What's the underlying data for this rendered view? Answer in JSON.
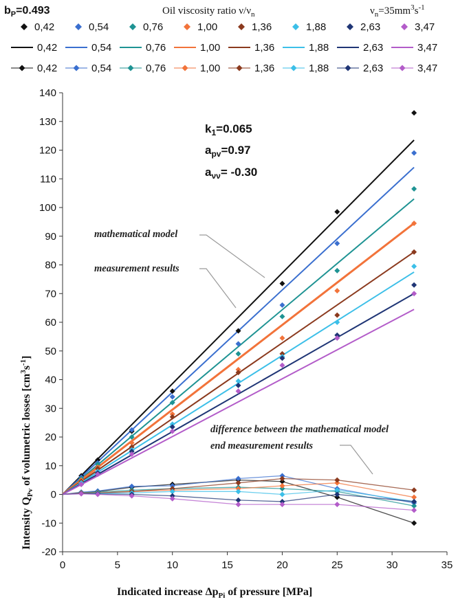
{
  "header": {
    "bp_label": "b",
    "bp_sub": "P",
    "bp_value": "=0.493",
    "viscosity_title": "Oil viscosity ratio ν/ν",
    "viscosity_title_sub": "n",
    "vn_label": "ν",
    "vn_sub": "n",
    "vn_value": "=35mm",
    "vn_sup1": "3",
    "vn_mid": "s",
    "vn_sup2": "-1"
  },
  "legend": {
    "labels": [
      "0,42",
      "0,54",
      "0,76",
      "1,00",
      "1,36",
      "1,88",
      "2,63",
      "3,47"
    ]
  },
  "annotations": {
    "k1": "k",
    "k1_sub": "1",
    "k1_value": "=0.065",
    "apv": "a",
    "apv_sub": "pv",
    "apv_value": "=0.97",
    "avv": "a",
    "avv_sub": "νν",
    "avv_value": "= -0.30",
    "math_model": "mathematical model",
    "measurement": "measurement results",
    "difference_line1": "difference between the mathematical model",
    "difference_line2": "end measurement results"
  },
  "chart_data": {
    "type": "scatter",
    "title": "",
    "xlabel": "Indicated increase Δp",
    "xlabel_sub": "Pi",
    "xlabel_rest": " of pressure    [MPa]",
    "ylabel": "Intensity Q",
    "ylabel_sub": "Pv",
    "ylabel_rest": " of volumetric losses   [cm",
    "ylabel_sup1": "3",
    "ylabel_mid": "s",
    "ylabel_sup2": "-1",
    "ylabel_end": "]",
    "xlim": [
      0,
      35
    ],
    "ylim": [
      -20,
      140
    ],
    "xticks": [
      0,
      5,
      10,
      15,
      20,
      25,
      30,
      35
    ],
    "yticks": [
      -20,
      -10,
      0,
      10,
      20,
      30,
      40,
      50,
      60,
      70,
      80,
      90,
      100,
      110,
      120,
      130,
      140
    ],
    "grid": false,
    "legend_position": "top",
    "series": [
      {
        "name": "0,42",
        "color": "#111111",
        "measured_x": [
          1.7,
          3.2,
          6.3,
          10.0,
          16.0,
          20.0,
          25.0,
          32.0
        ],
        "measured_y": [
          6.5,
          12.0,
          22.0,
          36.0,
          57.0,
          73.5,
          98.5,
          133.0
        ],
        "model_x": [
          0,
          32
        ],
        "model_y": [
          0,
          123.5
        ],
        "diff_x": [
          1.7,
          3.2,
          6.3,
          10.0,
          16.0,
          20.0,
          25.0,
          32.0
        ],
        "diff_y": [
          0.5,
          1.0,
          2.5,
          3.5,
          5.0,
          4.5,
          -1.0,
          -10.0
        ]
      },
      {
        "name": "0,54",
        "color": "#3a6fcf",
        "measured_x": [
          1.7,
          3.2,
          6.3,
          10.0,
          16.0,
          20.0,
          25.0,
          32.0
        ],
        "measured_y": [
          6.0,
          11.0,
          22.5,
          34.0,
          52.5,
          66.0,
          87.5,
          119.0
        ],
        "model_x": [
          0,
          32
        ],
        "model_y": [
          0,
          114.0
        ],
        "diff_x": [
          1.7,
          3.2,
          6.3,
          10.0,
          16.0,
          20.0,
          25.0,
          32.0
        ],
        "diff_y": [
          0.8,
          1.2,
          2.8,
          3.0,
          5.5,
          6.5,
          2.0,
          -3.0
        ]
      },
      {
        "name": "0,76",
        "color": "#1e9393",
        "measured_x": [
          1.7,
          3.2,
          6.3,
          10.0,
          16.0,
          20.0,
          25.0,
          32.0
        ],
        "measured_y": [
          5.5,
          10.5,
          20.0,
          32.0,
          49.0,
          62.0,
          78.0,
          106.5
        ],
        "model_x": [
          0,
          32
        ],
        "model_y": [
          0,
          103.0
        ],
        "diff_x": [
          1.7,
          3.2,
          6.3,
          10.0,
          16.0,
          20.0,
          25.0,
          32.0
        ],
        "diff_y": [
          0.6,
          0.8,
          1.5,
          2.0,
          2.5,
          2.0,
          1.0,
          -4.0
        ]
      },
      {
        "name": "1,00",
        "color": "#f2733a",
        "measured_x": [
          1.7,
          3.2,
          6.3,
          10.0,
          16.0,
          20.0,
          25.0,
          32.0
        ],
        "measured_y": [
          5.0,
          9.5,
          18.0,
          28.0,
          43.5,
          54.5,
          71.0,
          94.5
        ],
        "model_x": [
          0,
          32
        ],
        "model_y": [
          0,
          94.5
        ],
        "diff_x": [
          1.7,
          3.2,
          6.3,
          10.0,
          16.0,
          20.0,
          25.0,
          32.0
        ],
        "diff_y": [
          0.5,
          0.6,
          1.0,
          1.5,
          2.0,
          3.0,
          4.0,
          -1.0
        ]
      },
      {
        "name": "1,36",
        "color": "#8b3a1e",
        "measured_x": [
          1.7,
          3.2,
          6.3,
          10.0,
          16.0,
          20.0,
          25.0,
          32.0
        ],
        "measured_y": [
          4.5,
          9.0,
          16.5,
          27.0,
          42.5,
          49.0,
          62.5,
          84.5
        ],
        "model_x": [
          0,
          32
        ],
        "model_y": [
          0,
          84.5
        ],
        "diff_x": [
          1.7,
          3.2,
          6.3,
          10.0,
          16.0,
          20.0,
          25.0,
          32.0
        ],
        "diff_y": [
          0.4,
          0.5,
          1.0,
          2.0,
          4.0,
          5.5,
          5.0,
          1.5
        ]
      },
      {
        "name": "1,88",
        "color": "#3cbfe8",
        "measured_x": [
          1.7,
          3.2,
          6.3,
          10.0,
          16.0,
          20.0,
          25.0,
          32.0
        ],
        "measured_y": [
          4.0,
          8.0,
          15.5,
          24.5,
          39.5,
          48.0,
          60.0,
          79.5
        ],
        "model_x": [
          0,
          32
        ],
        "model_y": [
          0,
          77.5
        ],
        "diff_x": [
          1.7,
          3.2,
          6.3,
          10.0,
          16.0,
          20.0,
          25.0,
          32.0
        ],
        "diff_y": [
          0.3,
          0.4,
          0.5,
          1.0,
          1.0,
          0.0,
          1.5,
          -2.5
        ]
      },
      {
        "name": "2,63",
        "color": "#1f3575",
        "measured_x": [
          1.7,
          3.2,
          6.3,
          10.0,
          16.0,
          20.0,
          25.0,
          32.0
        ],
        "measured_y": [
          3.5,
          7.5,
          15.0,
          23.5,
          38.0,
          47.5,
          55.5,
          73.0
        ],
        "model_x": [
          0,
          32
        ],
        "model_y": [
          0,
          70.0
        ],
        "diff_x": [
          1.7,
          3.2,
          6.3,
          10.0,
          16.0,
          20.0,
          25.0,
          32.0
        ],
        "diff_y": [
          0.3,
          0.2,
          0.0,
          -0.5,
          -2.0,
          -2.5,
          0.0,
          -2.5
        ]
      },
      {
        "name": "3,47",
        "color": "#b35cc9",
        "measured_x": [
          1.7,
          3.2,
          6.3,
          10.0,
          16.0,
          20.0,
          25.0,
          32.0
        ],
        "measured_y": [
          3.5,
          7.0,
          14.0,
          22.0,
          36.0,
          45.0,
          54.5,
          70.0
        ],
        "model_x": [
          0,
          32
        ],
        "model_y": [
          0,
          64.5
        ],
        "diff_x": [
          1.7,
          3.2,
          6.3,
          10.0,
          16.0,
          20.0,
          25.0,
          32.0
        ],
        "diff_y": [
          0.2,
          0.0,
          -0.5,
          -1.5,
          -3.5,
          -3.5,
          -3.5,
          -5.5
        ]
      }
    ]
  }
}
